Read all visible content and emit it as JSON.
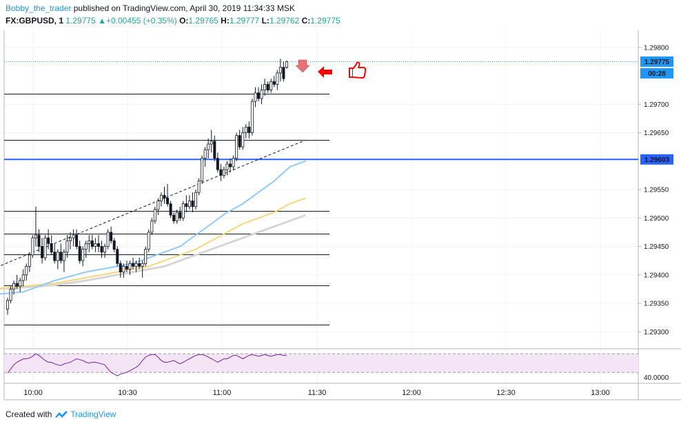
{
  "header": {
    "author": "Bobby_the_trader",
    "published": "published on TradingView.com, April 30, 2019 11:34:33 MSK",
    "symbol": "FX:GBPUSD, 1",
    "price": "1.29775",
    "change": "+0.00455 (+0.35%)",
    "o_label": "O:",
    "o_value": "1.29765",
    "h_label": "H:",
    "h_value": "1.29777",
    "l_label": "L:",
    "l_value": "1.29762",
    "c_label": "C:",
    "c_value": "1.29775"
  },
  "footer": {
    "created_with": "Created with",
    "brand": "TradingView"
  },
  "colors": {
    "up": "#26a69a",
    "candle": "#131722",
    "hline": "#131722",
    "blue_line": "#2962ff",
    "price_tag": "#2196f3",
    "ma_fast": "#90caf9",
    "ma_mid": "#f6d77c",
    "ma_slow": "#d6d6d6",
    "rsi_band": "#f3e5f5",
    "rsi_line": "#7b1fa2",
    "arrow": "#ff0000",
    "marker_down": "#e57373"
  },
  "icons": [
    "arrow-down-marker",
    "arrow-left-marker",
    "thumbs-up-icon",
    "tradingview-logo-icon"
  ],
  "chart_data": {
    "type": "candlestick",
    "title": "FX:GBPUSD, 1",
    "x_ticks": [
      "10:00",
      "10:30",
      "11:00",
      "11:30",
      "12:00",
      "12:30",
      "13:00"
    ],
    "y_ticks": [
      "1.29800",
      "1.29700",
      "1.29650",
      "1.29550",
      "1.29500",
      "1.29450",
      "1.29400",
      "1.29350",
      "1.29300"
    ],
    "ylim": [
      1.2927,
      1.2983
    ],
    "current_price_label": "1.29775",
    "countdown_label": "00:28",
    "blue_level_label": "1.29603",
    "partial_tick_label": "1",
    "rsi_label": "40.0000",
    "horizontal_levels": [
      1.29719,
      1.29637,
      1.29512,
      1.29473,
      1.29436,
      1.29382,
      1.29313
    ],
    "blue_level": 1.29603,
    "trendline": [
      {
        "t": -5,
        "y": 1.2941
      },
      {
        "t": 95,
        "y": 1.29637
      }
    ],
    "candles": [
      [
        1.2934,
        1.2936,
        1.2933,
        1.29355
      ],
      [
        1.29355,
        1.2938,
        1.2935,
        1.29375
      ],
      [
        1.29375,
        1.2939,
        1.29365,
        1.29385
      ],
      [
        1.29385,
        1.294,
        1.29375,
        1.2938
      ],
      [
        1.2938,
        1.29395,
        1.2937,
        1.2939
      ],
      [
        1.2939,
        1.2941,
        1.2938,
        1.294
      ],
      [
        1.294,
        1.2942,
        1.2939,
        1.29415
      ],
      [
        1.29415,
        1.2944,
        1.29405,
        1.29435
      ],
      [
        1.29435,
        1.2947,
        1.2943,
        1.29465
      ],
      [
        1.29465,
        1.2952,
        1.2945,
        1.2947
      ],
      [
        1.2947,
        1.2948,
        1.2944,
        1.2945
      ],
      [
        1.2945,
        1.29465,
        1.2942,
        1.2943
      ],
      [
        1.2943,
        1.2947,
        1.29425,
        1.29465
      ],
      [
        1.29465,
        1.2948,
        1.29445,
        1.29455
      ],
      [
        1.29455,
        1.2947,
        1.29435,
        1.2944
      ],
      [
        1.2944,
        1.29455,
        1.2942,
        1.29425
      ],
      [
        1.29425,
        1.29445,
        1.2941,
        1.2944
      ],
      [
        1.2944,
        1.29455,
        1.2942,
        1.29425
      ],
      [
        1.29425,
        1.29445,
        1.29405,
        1.2944
      ],
      [
        1.2944,
        1.2947,
        1.2943,
        1.2946
      ],
      [
        1.2946,
        1.29475,
        1.29445,
        1.29465
      ],
      [
        1.29465,
        1.2948,
        1.2945,
        1.2947
      ],
      [
        1.2947,
        1.2948,
        1.29445,
        1.2945
      ],
      [
        1.2945,
        1.2946,
        1.2942,
        1.29425
      ],
      [
        1.29425,
        1.2945,
        1.29415,
        1.29445
      ],
      [
        1.29445,
        1.2946,
        1.2943,
        1.29455
      ],
      [
        1.29455,
        1.2947,
        1.2944,
        1.2946
      ],
      [
        1.2946,
        1.2947,
        1.29445,
        1.2945
      ],
      [
        1.2945,
        1.29465,
        1.2944,
        1.29455
      ],
      [
        1.29455,
        1.2947,
        1.2944,
        1.2945
      ],
      [
        1.2945,
        1.2946,
        1.2943,
        1.2944
      ],
      [
        1.2944,
        1.29455,
        1.2943,
        1.2945
      ],
      [
        1.2945,
        1.2948,
        1.29445,
        1.29475
      ],
      [
        1.29475,
        1.29485,
        1.29455,
        1.2946
      ],
      [
        1.2946,
        1.29465,
        1.2944,
        1.29445
      ],
      [
        1.29445,
        1.2945,
        1.29415,
        1.2942
      ],
      [
        1.2942,
        1.29425,
        1.29395,
        1.29405
      ],
      [
        1.29405,
        1.2942,
        1.29395,
        1.29415
      ],
      [
        1.29415,
        1.29425,
        1.29405,
        1.2941
      ],
      [
        1.2941,
        1.29425,
        1.294,
        1.2942
      ],
      [
        1.2942,
        1.2943,
        1.2941,
        1.29415
      ],
      [
        1.29415,
        1.29425,
        1.29405,
        1.2942
      ],
      [
        1.2942,
        1.2943,
        1.2941,
        1.29415
      ],
      [
        1.29415,
        1.29425,
        1.29395,
        1.2942
      ],
      [
        1.2942,
        1.2945,
        1.29415,
        1.29445
      ],
      [
        1.29445,
        1.2948,
        1.2944,
        1.29475
      ],
      [
        1.29475,
        1.295,
        1.2947,
        1.29495
      ],
      [
        1.29495,
        1.2952,
        1.2949,
        1.29515
      ],
      [
        1.29515,
        1.29535,
        1.29505,
        1.2953
      ],
      [
        1.2953,
        1.29545,
        1.2952,
        1.2954
      ],
      [
        1.2954,
        1.29555,
        1.29525,
        1.29535
      ],
      [
        1.29535,
        1.2956,
        1.2952,
        1.29525
      ],
      [
        1.29525,
        1.2953,
        1.295,
        1.29505
      ],
      [
        1.29505,
        1.2951,
        1.2949,
        1.29495
      ],
      [
        1.29495,
        1.29515,
        1.2949,
        1.2951
      ],
      [
        1.2951,
        1.2952,
        1.29495,
        1.295
      ],
      [
        1.295,
        1.2953,
        1.29495,
        1.29525
      ],
      [
        1.29525,
        1.2954,
        1.2951,
        1.2952
      ],
      [
        1.2952,
        1.2954,
        1.29515,
        1.2953
      ],
      [
        1.2953,
        1.29545,
        1.2951,
        1.2952
      ],
      [
        1.2952,
        1.2955,
        1.29515,
        1.29545
      ],
      [
        1.29545,
        1.2957,
        1.2954,
        1.29565
      ],
      [
        1.29565,
        1.2961,
        1.2956,
        1.29605
      ],
      [
        1.29605,
        1.29625,
        1.2959,
        1.2962
      ],
      [
        1.2962,
        1.2964,
        1.29605,
        1.2963
      ],
      [
        1.2963,
        1.29655,
        1.29615,
        1.29635
      ],
      [
        1.29635,
        1.29645,
        1.296,
        1.29605
      ],
      [
        1.29605,
        1.29615,
        1.2958,
        1.29585
      ],
      [
        1.29585,
        1.29595,
        1.29565,
        1.29575
      ],
      [
        1.29575,
        1.2959,
        1.2957,
        1.29585
      ],
      [
        1.29585,
        1.296,
        1.29575,
        1.29595
      ],
      [
        1.29595,
        1.29605,
        1.2958,
        1.2959
      ],
      [
        1.2959,
        1.2961,
        1.29585,
        1.29605
      ],
      [
        1.29605,
        1.2965,
        1.296,
        1.29645
      ],
      [
        1.29645,
        1.29655,
        1.2962,
        1.29625
      ],
      [
        1.29625,
        1.2966,
        1.2962,
        1.2965
      ],
      [
        1.2965,
        1.29665,
        1.2964,
        1.2966
      ],
      [
        1.2966,
        1.2967,
        1.2964,
        1.2965
      ],
      [
        1.2965,
        1.2971,
        1.29645,
        1.29705
      ],
      [
        1.29705,
        1.2973,
        1.29695,
        1.2972
      ],
      [
        1.2972,
        1.2973,
        1.29705,
        1.2971
      ],
      [
        1.2971,
        1.29735,
        1.297,
        1.29725
      ],
      [
        1.29725,
        1.29745,
        1.29715,
        1.29735
      ],
      [
        1.29735,
        1.2974,
        1.2972,
        1.29725
      ],
      [
        1.29725,
        1.29745,
        1.2972,
        1.2974
      ],
      [
        1.2974,
        1.2975,
        1.2973,
        1.29735
      ],
      [
        1.29735,
        1.2976,
        1.29725,
        1.29755
      ],
      [
        1.29755,
        1.2978,
        1.2974,
        1.29765
      ],
      [
        1.29765,
        1.29775,
        1.2974,
        1.29745
      ],
      [
        1.29765,
        1.29777,
        1.29762,
        1.29775
      ]
    ],
    "ma_fast": [
      [
        -5,
        1.29365
      ],
      [
        5,
        1.2937
      ],
      [
        15,
        1.2939
      ],
      [
        25,
        1.29405
      ],
      [
        30,
        1.2941
      ],
      [
        35,
        1.29415
      ],
      [
        40,
        1.2942
      ],
      [
        45,
        1.2943
      ],
      [
        50,
        1.2944
      ],
      [
        55,
        1.2945
      ],
      [
        60,
        1.2947
      ],
      [
        65,
        1.2949
      ],
      [
        70,
        1.2951
      ],
      [
        75,
        1.29525
      ],
      [
        80,
        1.29545
      ],
      [
        85,
        1.29565
      ],
      [
        90,
        1.2959
      ],
      [
        95,
        1.296
      ]
    ],
    "ma_mid": [
      [
        -5,
        1.29375
      ],
      [
        5,
        1.2938
      ],
      [
        15,
        1.29385
      ],
      [
        25,
        1.29395
      ],
      [
        30,
        1.294
      ],
      [
        35,
        1.29405
      ],
      [
        40,
        1.2941
      ],
      [
        45,
        1.29415
      ],
      [
        50,
        1.29425
      ],
      [
        55,
        1.29435
      ],
      [
        60,
        1.29445
      ],
      [
        65,
        1.2946
      ],
      [
        70,
        1.29475
      ],
      [
        75,
        1.2949
      ],
      [
        80,
        1.295
      ],
      [
        85,
        1.2951
      ],
      [
        90,
        1.29525
      ],
      [
        95,
        1.29535
      ]
    ],
    "ma_slow": [
      [
        -5,
        1.29375
      ],
      [
        5,
        1.29378
      ],
      [
        15,
        1.29382
      ],
      [
        25,
        1.2939
      ],
      [
        30,
        1.29395
      ],
      [
        35,
        1.294
      ],
      [
        40,
        1.29405
      ],
      [
        45,
        1.2941
      ],
      [
        50,
        1.29415
      ],
      [
        55,
        1.29425
      ],
      [
        60,
        1.29435
      ],
      [
        65,
        1.29445
      ],
      [
        70,
        1.29455
      ],
      [
        75,
        1.29465
      ],
      [
        80,
        1.29475
      ],
      [
        85,
        1.29485
      ],
      [
        90,
        1.29495
      ],
      [
        95,
        1.29505
      ]
    ],
    "rsi": {
      "level": 40,
      "ylim": [
        34,
        73
      ],
      "band": [
        46,
        68
      ],
      "values": [
        45,
        50,
        55,
        58,
        60,
        62,
        62,
        63,
        65,
        68,
        66,
        63,
        60,
        58,
        58,
        56,
        55,
        54,
        56,
        57,
        58,
        60,
        62,
        61,
        60,
        58,
        57,
        58,
        58,
        57,
        56,
        55,
        50,
        46,
        44,
        42,
        44,
        45,
        46,
        48,
        50,
        52,
        55,
        60,
        64,
        66,
        67,
        67,
        64,
        60,
        58,
        58,
        59,
        60,
        58,
        56,
        58,
        60,
        62,
        64,
        66,
        67,
        67,
        66,
        64,
        62,
        60,
        58,
        60,
        62,
        62,
        64,
        66,
        66,
        64,
        62,
        64,
        66,
        67,
        66,
        65,
        66,
        67,
        66,
        65,
        66,
        67,
        67,
        66,
        66
      ]
    }
  }
}
